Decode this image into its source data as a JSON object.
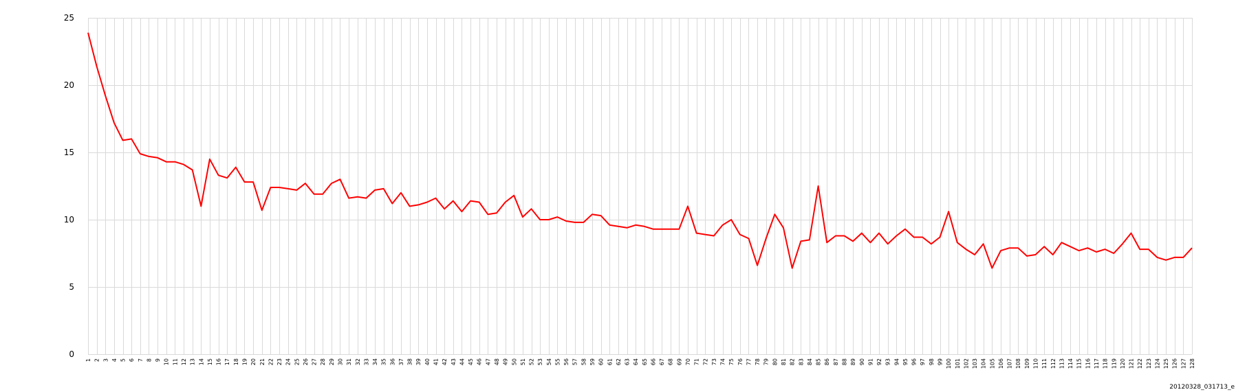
{
  "caption": "20120328_031713_e",
  "chart_data": {
    "type": "line",
    "title": "",
    "xlabel": "",
    "ylabel": "",
    "ylim": [
      0,
      25
    ],
    "yticks": [
      0,
      5,
      10,
      15,
      20,
      25
    ],
    "grid": true,
    "legend": "none",
    "line_color": "#ff0000",
    "x": [
      1,
      2,
      3,
      4,
      5,
      6,
      7,
      8,
      9,
      10,
      11,
      12,
      13,
      14,
      15,
      16,
      17,
      18,
      19,
      20,
      21,
      22,
      23,
      24,
      25,
      26,
      27,
      28,
      29,
      30,
      31,
      32,
      33,
      34,
      35,
      36,
      37,
      38,
      39,
      40,
      41,
      42,
      43,
      44,
      45,
      46,
      47,
      48,
      49,
      50,
      51,
      52,
      53,
      54,
      55,
      56,
      57,
      58,
      59,
      60,
      61,
      62,
      63,
      64,
      65,
      66,
      67,
      68,
      69,
      70,
      71,
      72,
      73,
      74,
      75,
      76,
      77,
      78,
      79,
      80,
      81,
      82,
      83,
      84,
      85,
      86,
      87,
      88,
      89,
      90,
      91,
      92,
      93,
      94,
      95,
      96,
      97,
      98,
      99,
      100,
      101,
      102,
      103,
      104,
      105,
      106,
      107,
      108,
      109,
      110,
      111,
      112,
      113,
      114,
      115,
      116,
      117,
      118,
      119,
      120,
      121,
      122,
      123,
      124,
      125,
      126,
      127,
      128
    ],
    "series": [
      {
        "values": [
          23.9,
          21.4,
          19.2,
          17.2,
          15.9,
          16.0,
          14.9,
          14.7,
          14.6,
          14.3,
          14.3,
          14.1,
          13.7,
          11.0,
          14.5,
          13.3,
          13.1,
          13.9,
          12.8,
          12.8,
          10.7,
          12.4,
          12.4,
          12.3,
          12.2,
          12.7,
          11.9,
          11.9,
          12.7,
          13.0,
          11.6,
          11.7,
          11.6,
          12.2,
          12.3,
          11.2,
          12.0,
          11.0,
          11.1,
          11.3,
          11.6,
          10.8,
          11.4,
          10.6,
          11.4,
          11.3,
          10.4,
          10.5,
          11.3,
          11.8,
          10.2,
          10.8,
          10.0,
          10.0,
          10.2,
          9.9,
          9.8,
          9.8,
          10.4,
          10.3,
          9.6,
          9.5,
          9.4,
          9.6,
          9.5,
          9.3,
          9.3,
          9.3,
          9.3,
          11.0,
          9.0,
          8.9,
          8.8,
          9.6,
          10.0,
          8.9,
          8.6,
          6.6,
          8.6,
          10.4,
          9.4,
          6.4,
          8.4,
          8.5,
          12.5,
          8.3,
          8.8,
          8.8,
          8.4,
          9.0,
          8.3,
          9.0,
          8.2,
          8.8,
          9.3,
          8.7,
          8.7,
          8.2,
          8.7,
          10.6,
          8.3,
          7.8,
          7.4,
          8.2,
          6.4,
          7.7,
          7.9,
          7.9,
          7.3,
          7.4,
          8.0,
          7.4,
          8.3,
          8.0,
          7.7,
          7.9,
          7.6,
          7.8,
          7.5,
          8.2,
          9.0,
          7.8,
          7.8,
          7.2,
          7.0,
          7.2,
          7.2,
          7.9
        ]
      }
    ]
  }
}
